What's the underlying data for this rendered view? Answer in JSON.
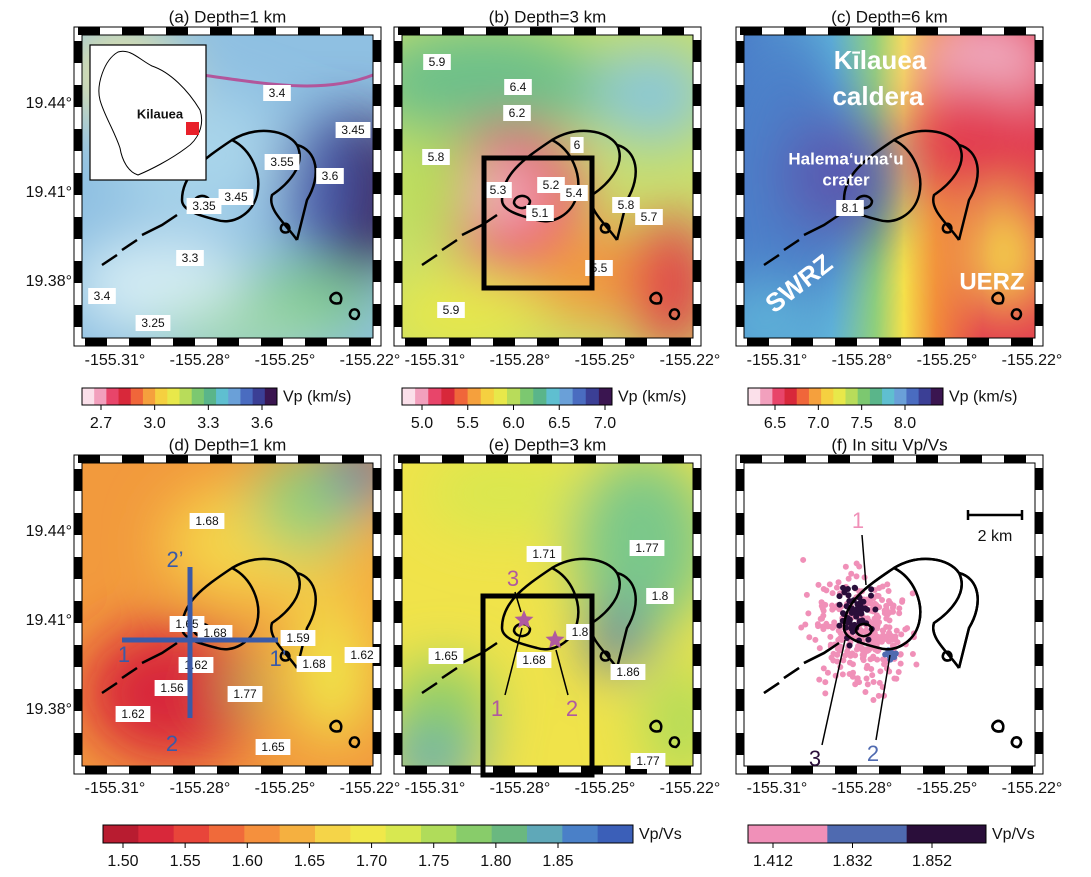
{
  "panels": [
    {
      "title": "(a) Depth=1 km",
      "contour_labels": [
        "3.4",
        "3.45",
        "3.55",
        "3.6",
        "3.35",
        "3.45",
        "3.3",
        "3.4",
        "3.25"
      ],
      "annotations": [
        "Kilauea"
      ]
    },
    {
      "title": "(b) Depth=3 km",
      "contour_labels": [
        "5.9",
        "6.4",
        "6.2",
        "6",
        "5.8",
        "5.3",
        "5.2",
        "5.4",
        "5.1",
        "5.8",
        "5.7",
        "5.5",
        "5.9"
      ],
      "annotations": []
    },
    {
      "title": "(c) Depth=6 km",
      "contour_labels": [
        "8.1"
      ],
      "annotations": [
        "Kīlauea",
        "caldera",
        "Halema‘uma‘u",
        "crater",
        "SWRZ",
        "UERZ"
      ]
    },
    {
      "title": "(d) Depth=1 km",
      "contour_labels": [
        "1.68",
        "1.65",
        "1.68",
        "1.59",
        "1.62",
        "1.68",
        "1.62",
        "1.56",
        "1.77",
        "1.62",
        "1.65"
      ],
      "annotations": [
        "2’",
        "1",
        "1’",
        "2"
      ]
    },
    {
      "title": "(e) Depth=3 km",
      "contour_labels": [
        "1.77",
        "1.71",
        "1.8",
        "1.8",
        "1.65",
        "1.68",
        "1.86",
        "1.77"
      ],
      "annotations": [
        "3",
        "1",
        "2"
      ]
    },
    {
      "title": "(f) In situ Vp/Vs",
      "contour_labels": [],
      "annotations": [
        "1",
        "3",
        "2",
        "2 km"
      ]
    }
  ],
  "x_ticks": [
    "-155.31°",
    "-155.28°",
    "-155.25°",
    "-155.22°"
  ],
  "y_ticks": [
    "19.44°",
    "19.41°",
    "19.38°"
  ],
  "colorbars": [
    {
      "label": "Vp (km/s)",
      "ticks": [
        "2.7",
        "3.0",
        "3.3",
        "3.6"
      ]
    },
    {
      "label": "Vp (km/s)",
      "ticks": [
        "5.0",
        "5.5",
        "6.0",
        "6.5",
        "7.0"
      ]
    },
    {
      "label": "Vp (km/s)",
      "ticks": [
        "6.5",
        "7.0",
        "7.5",
        "8.0"
      ]
    },
    {
      "label": "Vp/Vs",
      "ticks": [
        "1.50",
        "1.55",
        "1.60",
        "1.65",
        "1.70",
        "1.75",
        "1.80",
        "1.85"
      ]
    },
    {
      "label": "Vp/Vs",
      "ticks": [
        "1.412",
        "1.832",
        "1.852"
      ]
    }
  ]
}
